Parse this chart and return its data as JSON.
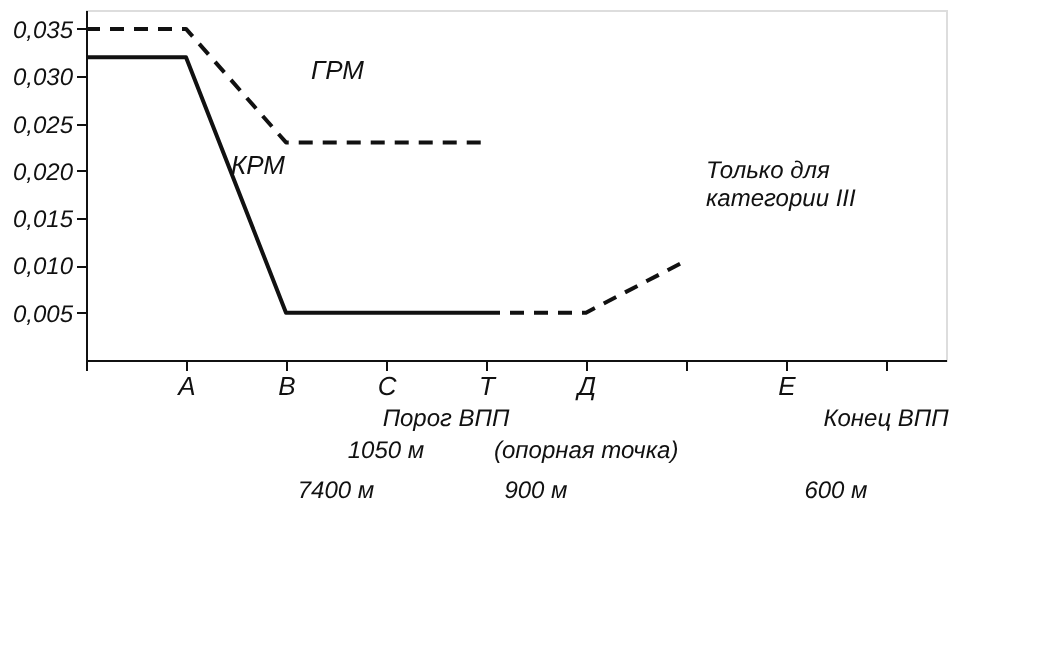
{
  "chart_data": {
    "type": "line",
    "categories": [
      null,
      "А",
      "В",
      "С",
      "Т",
      "Д",
      null,
      "Е",
      null
    ],
    "series": [
      {
        "name": "КРМ",
        "color": "#111111",
        "line_style": "solid",
        "values": [
          0.032,
          0.032,
          0.005,
          0.005,
          0.005,
          null,
          null,
          null,
          null
        ]
      },
      {
        "name": "ГРМ",
        "color": "#111111",
        "line_style": "dashed",
        "values": [
          0.035,
          0.035,
          0.023,
          0.023,
          0.023,
          null,
          null,
          null,
          null
        ]
      },
      {
        "color": "#111111",
        "line_style": "dashed",
        "values": [
          null,
          null,
          null,
          null,
          0.005,
          0.005,
          0.0105,
          null,
          null
        ]
      }
    ],
    "ylim": [
      0,
      0.037
    ],
    "yticks": [
      {
        "value": 0.005,
        "label": "0,005"
      },
      {
        "value": 0.01,
        "label": "0,010"
      },
      {
        "value": 0.015,
        "label": "0,015"
      },
      {
        "value": 0.02,
        "label": "0,020"
      },
      {
        "value": 0.025,
        "label": "0,025"
      },
      {
        "value": 0.03,
        "label": "0,030"
      },
      {
        "value": 0.035,
        "label": "0,035"
      }
    ],
    "grid": false,
    "annotations": [
      "Только для\nкатегории III",
      "Порог ВПП",
      "(опорная точка)",
      "Конец ВПП",
      "1050 м",
      "7400 м",
      "900 м",
      "600 м"
    ]
  }
}
